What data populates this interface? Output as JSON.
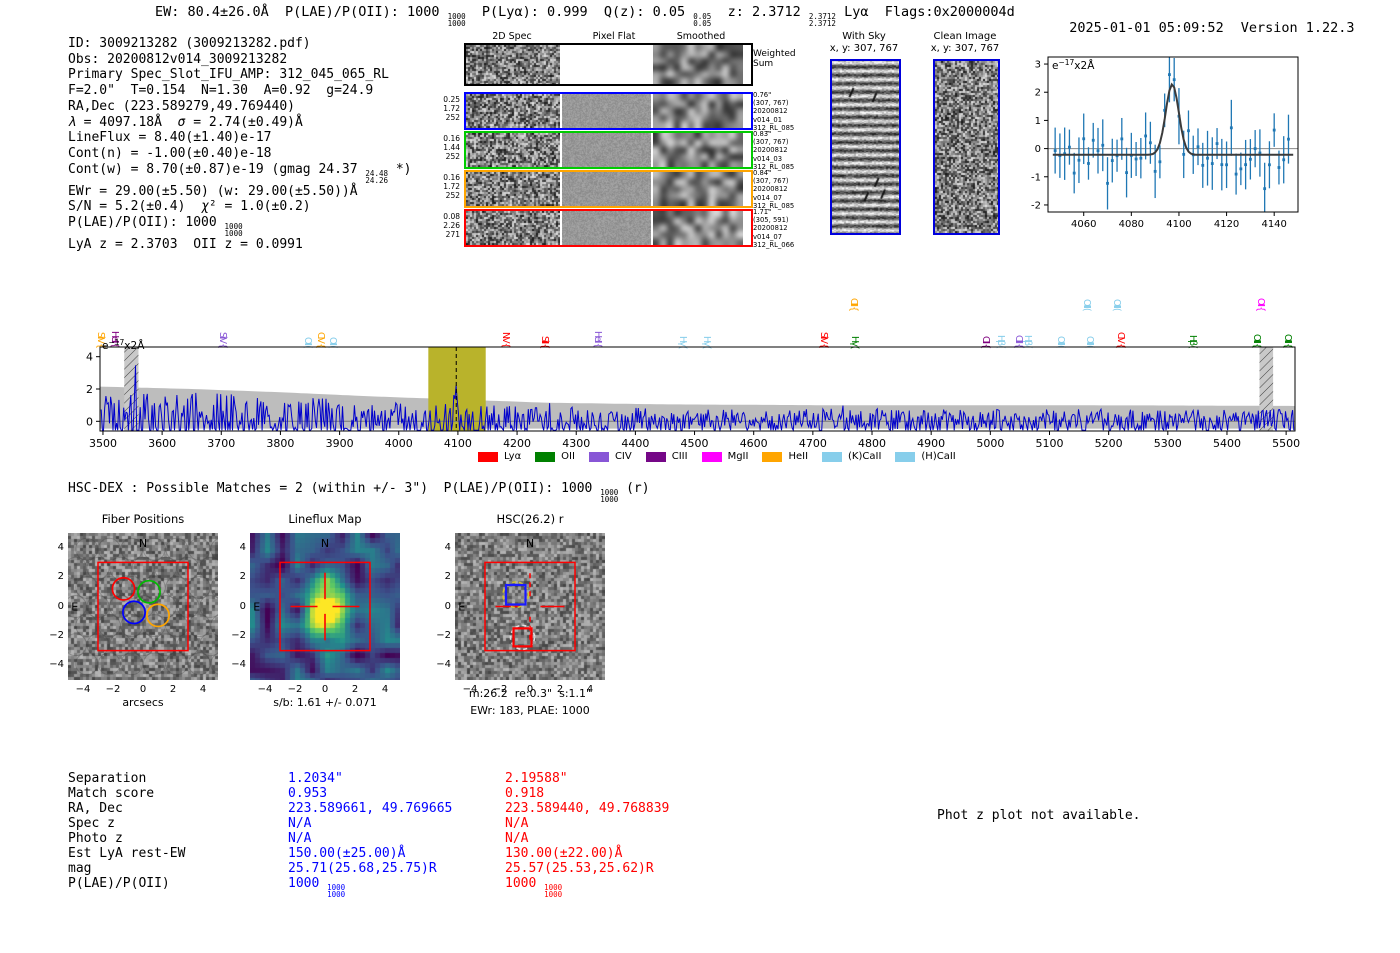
{
  "header": {
    "summary_segments": [
      {
        "t": "EW: 80.4±26.0Å  P(LAE)/P(OII): 1000 "
      },
      {
        "f": [
          "1000",
          "1000"
        ]
      },
      {
        "t": "  P(Lyα): 0.999  Q(z): 0.05 "
      },
      {
        "f": [
          "0.05",
          "0.05"
        ]
      },
      {
        "t": "  z: 2.3712 "
      },
      {
        "f": [
          "2.3712",
          "2.3712"
        ]
      },
      {
        "t": " Lyα  Flags:0x2000004d"
      }
    ],
    "datetime": "2025-01-01 05:09:52",
    "version": "Version 1.22.3"
  },
  "info_block": {
    "lines": [
      [
        {
          "t": "ID: 3009213282 (3009213282.pdf)"
        }
      ],
      [
        {
          "t": "Obs: 20200812v014_3009213282"
        }
      ],
      [
        {
          "t": "Primary Spec_Slot_IFU_AMP: 312_045_065_RL"
        }
      ],
      [
        {
          "t": "F=2.0\"  T=0.154  N=1.30  A=0.92  g=24.9"
        }
      ],
      [
        {
          "t": "RA,Dec (223.589279,49.769440)"
        }
      ],
      [
        {
          "i": "λ"
        },
        {
          "t": " = 4097.18Å  "
        },
        {
          "i": "σ"
        },
        {
          "t": " = 2.74(±0.49)Å"
        }
      ],
      [
        {
          "t": "LineFlux = 8.40(±1.40)e-17"
        }
      ],
      [
        {
          "t": "Cont(n) = -1.00(±0.40)e-18"
        }
      ],
      [
        {
          "t": "Cont(w) = 8.70(±0.87)e-19 (gmag 24.37 "
        },
        {
          "f": [
            "24.48",
            "24.26"
          ]
        },
        {
          "t": " *)"
        }
      ],
      [
        {
          "t": "EWr = 29.00(±5.50) (w: 29.00(±5.50))Å"
        }
      ],
      [
        {
          "t": "S/N = 5.2(±0.4)  "
        },
        {
          "i": "χ"
        },
        {
          "t": "² = 1.0(±0.2)"
        }
      ],
      [
        {
          "t": "P(LAE)/P(OII): 1000 "
        },
        {
          "f": [
            "1000",
            "1000"
          ]
        }
      ],
      [
        {
          "t": "LyA z = 2.3703  OII z = 0.0991"
        }
      ]
    ]
  },
  "spec2d": {
    "col_titles": [
      "2D Spec",
      "Pixel Flat",
      "Smoothed"
    ],
    "weighted_sum": "Weighted Sum",
    "rows": [
      {
        "color": "#0000ff",
        "left": [
          "0.25",
          "1.72",
          "252"
        ],
        "right": [
          "0.76\"",
          "(307, 767)",
          "20200812",
          "v014_01",
          "312_RL_085"
        ]
      },
      {
        "color": "#00cc00",
        "left": [
          "0.16",
          "1.44",
          "252"
        ],
        "right": [
          "0.83\"",
          "(307, 767)",
          "20200812",
          "v014_03",
          "312_RL_085"
        ]
      },
      {
        "color": "#ffa500",
        "left": [
          "0.16",
          "1.72",
          "252"
        ],
        "right": [
          "0.84\"",
          "(307, 767)",
          "20200812",
          "v014_07",
          "312_RL_085"
        ]
      },
      {
        "color": "#ff0000",
        "left": [
          "0.08",
          "2.26",
          "271"
        ],
        "right": [
          "1.71\"",
          "(305, 591)",
          "20200812",
          "v014_07",
          "312_RL_066"
        ]
      }
    ]
  },
  "sky_panels": {
    "with_sky": {
      "title": "With Sky",
      "coords": "x, y: 307, 767"
    },
    "clean": {
      "title": "Clean Image",
      "coords": "x, y: 307, 767"
    }
  },
  "hsc_dex_segments": [
    {
      "t": "HSC-DEX : Possible Matches = 2 (within +/- 3\")  P(LAE)/P(OII): 1000 "
    },
    {
      "f": [
        "1000",
        "1000"
      ]
    },
    {
      "t": " (r)"
    }
  ],
  "match_table": {
    "labels": [
      "Separation",
      "Match score",
      "RA, Dec",
      "Spec z",
      "Photo z",
      "Est LyA rest-EW",
      "mag",
      "P(LAE)/P(OII)"
    ],
    "columns": [
      {
        "color": "#0000ff",
        "values": [
          [
            {
              "t": "1.2034\""
            }
          ],
          [
            {
              "t": "0.953"
            }
          ],
          [
            {
              "t": "223.589661, 49.769665"
            }
          ],
          [
            {
              "t": "N/A"
            }
          ],
          [
            {
              "t": "N/A"
            }
          ],
          [
            {
              "t": "150.00(±25.00)Å"
            }
          ],
          [
            {
              "t": "25.71(25.68,25.75)R"
            }
          ],
          [
            {
              "t": "1000 "
            },
            {
              "f": [
                "1000",
                "1000"
              ]
            }
          ]
        ]
      },
      {
        "color": "#ff0000",
        "values": [
          [
            {
              "t": "2.19588\""
            }
          ],
          [
            {
              "t": "0.918"
            }
          ],
          [
            {
              "t": "223.589440, 49.768839"
            }
          ],
          [
            {
              "t": "N/A"
            }
          ],
          [
            {
              "t": "N/A"
            }
          ],
          [
            {
              "t": "130.00(±22.00)Å"
            }
          ],
          [
            {
              "t": "25.57(25.53,25.62)R"
            }
          ],
          [
            {
              "t": "1000 "
            },
            {
              "f": [
                "1000",
                "1000"
              ]
            }
          ]
        ]
      }
    ]
  },
  "phot_z_note": "Phot z plot not available.",
  "chart_data": [
    {
      "id": "line_fit",
      "type": "line",
      "annotation": {
        "base": "e",
        "sup": "−17",
        "tail": "x2Å"
      },
      "xlim": [
        4045,
        4150
      ],
      "ylim": [
        -2.25,
        3.25
      ],
      "xticks": [
        4060,
        4080,
        4100,
        4120,
        4140
      ],
      "yticks": [
        -2,
        -1,
        0,
        1,
        2,
        3
      ],
      "fit": {
        "center": 4097.18,
        "sigma": 2.74,
        "amplitude": 2.5,
        "baseline": -0.22,
        "color": "#3b3b3b"
      },
      "points": {
        "color": "#1f77b4",
        "x_start": 4048,
        "x_step": 2,
        "count": 50,
        "noise_sigma": 0.5,
        "err_base": 0.55,
        "err_rand": 0.45,
        "seed": 11
      }
    },
    {
      "id": "full_spectrum",
      "type": "line",
      "annotation": {
        "base": "e",
        "sup": "−17",
        "tail": "x2Å"
      },
      "xlim": [
        3495,
        5515
      ],
      "ylim": [
        -0.6,
        4.6
      ],
      "xticks": [
        3500,
        3600,
        3700,
        3800,
        3900,
        4000,
        4100,
        4200,
        4300,
        4400,
        4500,
        4600,
        4700,
        4800,
        4900,
        5000,
        5100,
        5200,
        5300,
        5400,
        5500
      ],
      "yticks": [
        0,
        2,
        4
      ],
      "spectrum_color": "#0000cc",
      "noise_band_color": "#bdbdbd",
      "emission_line": {
        "center": 4097.18,
        "sigma": 2.74,
        "amplitude": 2.2
      },
      "highlight_band": {
        "range": [
          4050,
          4147
        ],
        "color": "#b9b32b"
      },
      "dashed_marker": 4097.18,
      "hatch_bands": [
        [
          3536,
          3560
        ],
        [
          5455,
          5478
        ]
      ],
      "noise_seed": 5,
      "envelope": [
        [
          3495,
          2.15
        ],
        [
          3650,
          2.0
        ],
        [
          3800,
          1.8
        ],
        [
          3950,
          1.55
        ],
        [
          4100,
          1.35
        ],
        [
          4250,
          1.15
        ],
        [
          4450,
          1.05
        ],
        [
          4700,
          1.0
        ],
        [
          5000,
          1.0
        ],
        [
          5300,
          0.98
        ],
        [
          5515,
          0.95
        ]
      ],
      "line_labels": [
        {
          "text": "SiIV {",
          "color": "#ffa500",
          "wave": 3497,
          "row": 0
        },
        {
          "text": "HeII {",
          "color": "#800080",
          "wave": 3521,
          "row": 0
        },
        {
          "text": "SiIV {",
          "color": "#8856d6",
          "wave": 3703,
          "row": 0
        },
        {
          "text": "OII (",
          "color": "#87ceeb",
          "wave": 3847,
          "row": 0
        },
        {
          "text": "CIV {",
          "color": "#ffa500",
          "wave": 3869,
          "row": 0
        },
        {
          "text": "OII (",
          "color": "#87ceeb",
          "wave": 3889,
          "row": 0
        },
        {
          "text": "NV {",
          "color": "#ff0000",
          "wave": 4182,
          "row": 0
        },
        {
          "text": "SiII {",
          "color": "#ff0000",
          "wave": 4247,
          "row": 0
        },
        {
          "text": "HeII {",
          "color": "#8856d6",
          "wave": 4337,
          "row": 0
        },
        {
          "text": "Hγ (",
          "color": "#87ceeb",
          "wave": 4480,
          "row": 0
        },
        {
          "text": "Hγ (",
          "color": "#87ceeb",
          "wave": 4521,
          "row": 0
        },
        {
          "text": "SiIV {",
          "color": "#ff0000",
          "wave": 4718,
          "row": 0
        },
        {
          "text": "Hγ (",
          "color": "#008000",
          "wave": 4771,
          "row": 0
        },
        {
          "text": "CIII {",
          "color": "#ffa500",
          "wave": 4769,
          "row": 1
        },
        {
          "text": "CII {",
          "color": "#800080",
          "wave": 4992,
          "row": 0
        },
        {
          "text": "Hβ (",
          "color": "#87ceeb",
          "wave": 5018,
          "row": 0
        },
        {
          "text": "CIII {",
          "color": "#8856d6",
          "wave": 5049,
          "row": 0
        },
        {
          "text": "Hβ (",
          "color": "#87ceeb",
          "wave": 5063,
          "row": 0
        },
        {
          "text": "OIII (",
          "color": "#87ceeb",
          "wave": 5119,
          "row": 0
        },
        {
          "text": "OIII (",
          "color": "#87ceeb",
          "wave": 5169,
          "row": 0
        },
        {
          "text": "OIII (",
          "color": "#87ceeb",
          "wave": 5164,
          "row": 1
        },
        {
          "text": "OIII (",
          "color": "#87ceeb",
          "wave": 5214,
          "row": 1
        },
        {
          "text": "CIV {",
          "color": "#ff0000",
          "wave": 5221,
          "row": 0
        },
        {
          "text": "Hβ (",
          "color": "#008000",
          "wave": 5343,
          "row": 0
        },
        {
          "text": "OIII {",
          "color": "#008000",
          "wave": 5451,
          "row": 0
        },
        {
          "text": "OII {",
          "color": "#ff00ff",
          "wave": 5457,
          "row": 1
        },
        {
          "text": "OIII {",
          "color": "#008000",
          "wave": 5503,
          "row": 0
        }
      ],
      "legend": [
        {
          "label": "Lyα",
          "color": "#ff0000"
        },
        {
          "label": "OII",
          "color": "#008000"
        },
        {
          "label": "CIV",
          "color": "#8856d6"
        },
        {
          "label": "CIII",
          "color": "#750787"
        },
        {
          "label": "MgII",
          "color": "#ff00ff"
        },
        {
          "label": "HeII",
          "color": "#ffa500"
        },
        {
          "label": "(K)CaII",
          "color": "#87ceeb"
        },
        {
          "label": "(H)CaII",
          "color": "#87ceeb"
        }
      ]
    },
    {
      "id": "fiber_positions",
      "type": "scatter",
      "title": "Fiber Positions",
      "xlabel": "arcsecs",
      "xticks": [
        -4,
        -2,
        0,
        2,
        4
      ],
      "yticks": [
        -4,
        -2,
        0,
        2,
        4
      ],
      "lim": [
        -5,
        5
      ],
      "compass": {
        "north": "N",
        "east": "E",
        "color": "#ff0000"
      },
      "box": {
        "range": [
          -3,
          3
        ],
        "color": "#ff0000"
      },
      "fibers": [
        {
          "color": "#ff0000",
          "x": -1.3,
          "y": 1.2,
          "r": 0.74
        },
        {
          "color": "#00bb00",
          "x": 0.4,
          "y": 1.0,
          "r": 0.74
        },
        {
          "color": "#0000ff",
          "x": -0.6,
          "y": -0.4,
          "r": 0.74
        },
        {
          "color": "#ffa500",
          "x": 1.0,
          "y": -0.6,
          "r": 0.74
        }
      ]
    },
    {
      "id": "lineflux_map",
      "type": "heatmap",
      "title": "Lineflux Map",
      "xlabel": "s/b: 1.61 +/- 0.071",
      "xticks": [
        -4,
        -2,
        0,
        2,
        4
      ],
      "yticks": [
        -4,
        -2,
        0,
        2,
        4
      ],
      "lim": [
        -5,
        5
      ],
      "compass": {
        "north": "N",
        "east": "E",
        "color": "#ff0000"
      },
      "box": {
        "range": [
          -3,
          3
        ],
        "color": "#ff0000"
      },
      "crosshair": {
        "color": "#ff0000",
        "gap": 0.5,
        "len": 2.3
      },
      "colormap": "viridis",
      "peak": {
        "x": 0,
        "y": -0.2,
        "note": "bright central blob"
      }
    },
    {
      "id": "hsc_cutout",
      "type": "image",
      "title": "HSC(26.2) r",
      "xlabel": "m:26.2  re:0.3\"  s:1.1\"",
      "xlabel2": "EWr: 183, PLAE: 1000",
      "xticks": [
        -4,
        -2,
        0,
        2,
        4
      ],
      "yticks": [
        -4,
        -2,
        0,
        2,
        4
      ],
      "lim": [
        -5,
        5
      ],
      "compass": {
        "north": "N",
        "east": "E",
        "color": "#ff0000"
      },
      "box": {
        "range": [
          -3,
          3
        ],
        "color": "#ff0000"
      },
      "crosshair": {
        "color": "#ff0000",
        "gap": 0.7,
        "len": 2.3
      },
      "markers": [
        {
          "shape": "circle",
          "style": "dashed",
          "color": "#d4c430",
          "x": -0.95,
          "y": 0.8,
          "r": 0.85
        },
        {
          "shape": "square",
          "style": "solid",
          "color": "#1a1aff",
          "x": -0.95,
          "y": 0.8,
          "size": 0.65
        },
        {
          "shape": "circle",
          "style": "dashed",
          "color": "#e0e0e0",
          "x": -0.5,
          "y": -2.1,
          "r": 0.8
        },
        {
          "shape": "square",
          "style": "solid",
          "color": "#ff0000",
          "x": -0.5,
          "y": -2.1,
          "size": 0.6
        }
      ]
    }
  ]
}
